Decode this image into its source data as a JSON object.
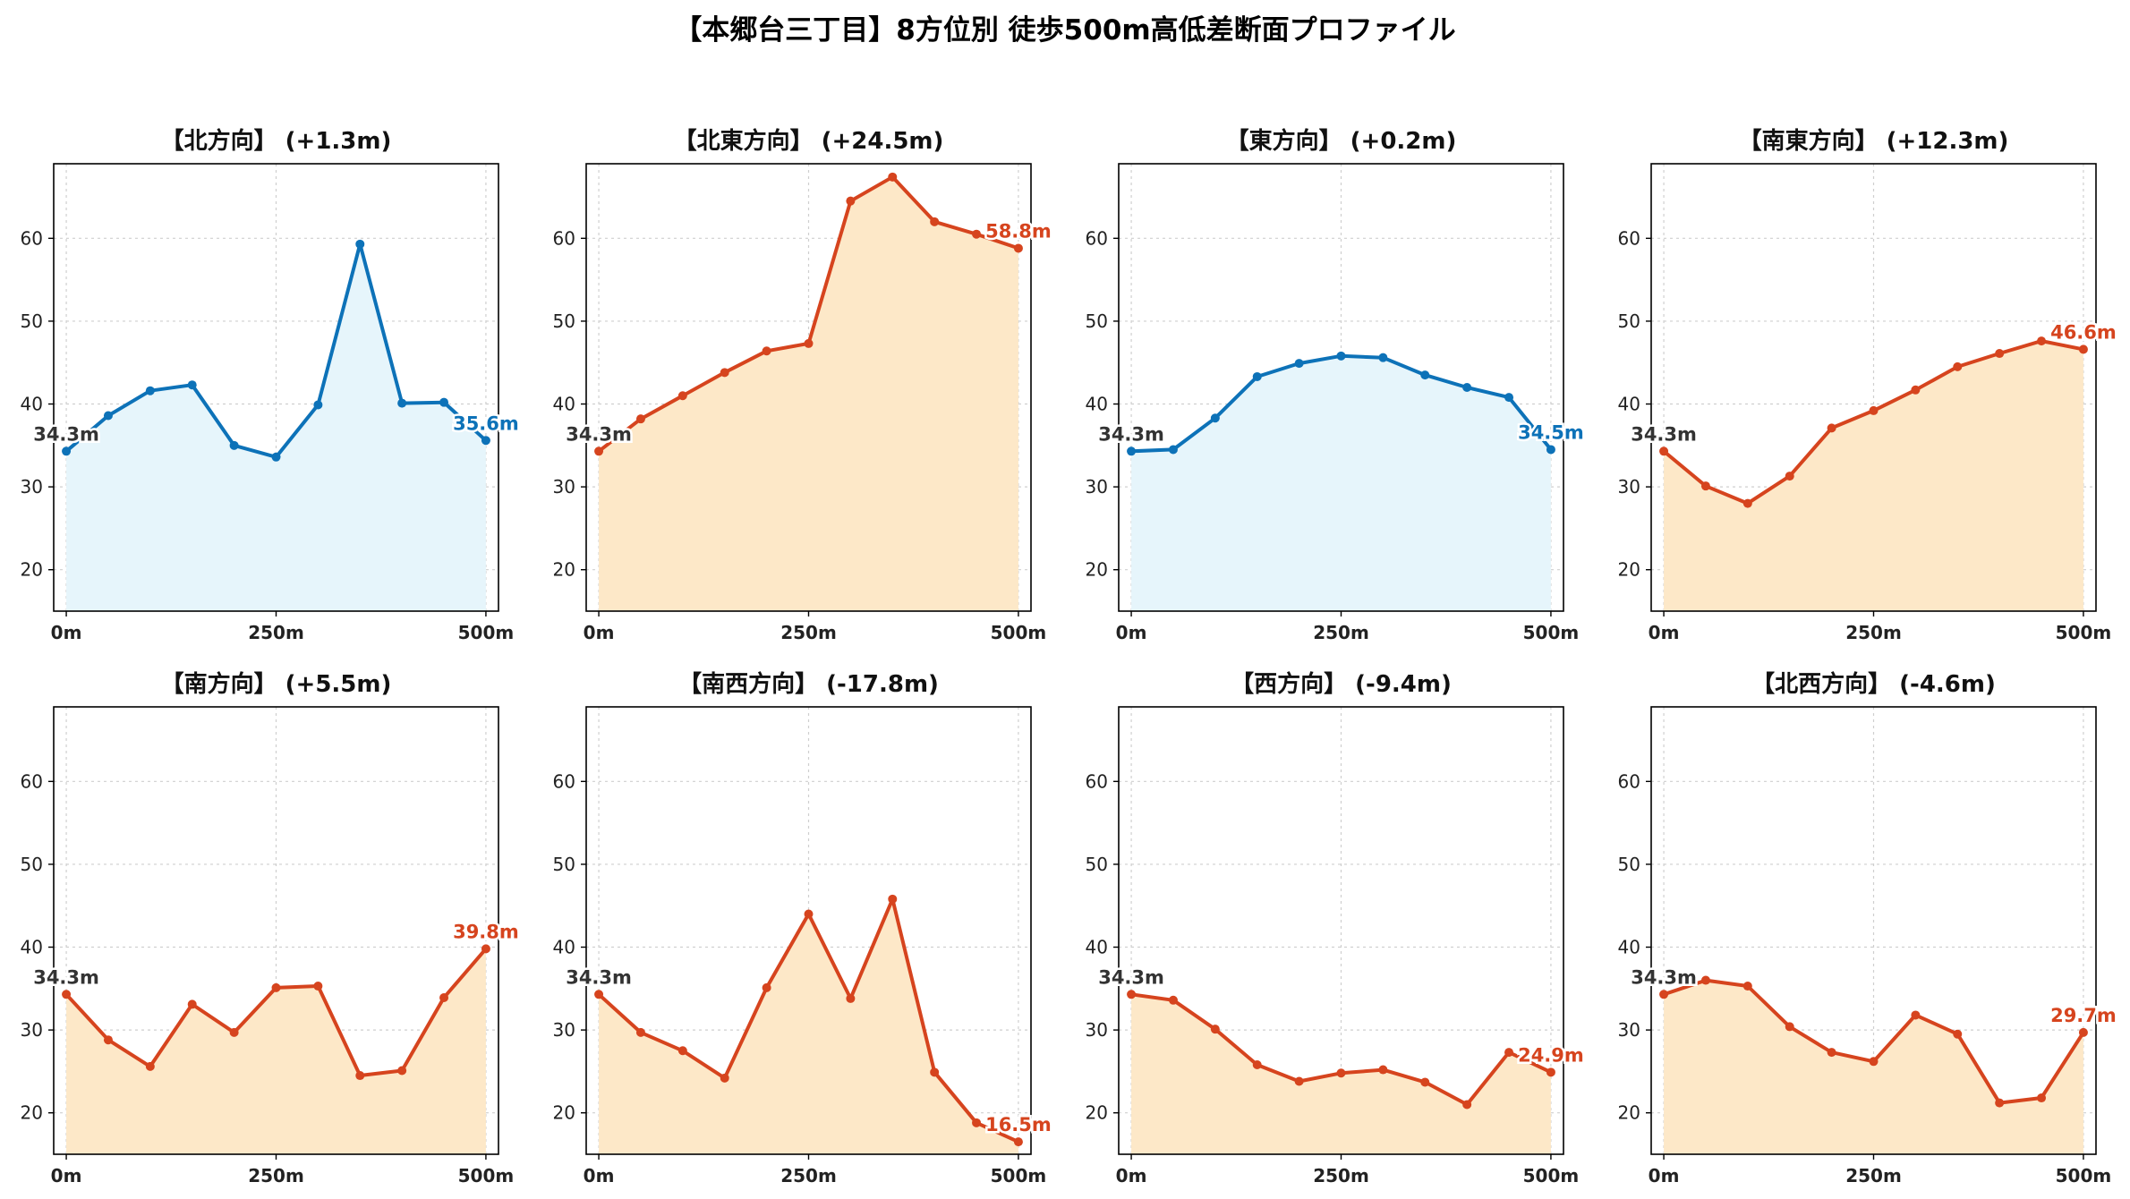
{
  "title": "【本郷台三丁目】8方位別 徒歩500m高低差断面プロファイル",
  "colors": {
    "uphill": "#d6441e",
    "uphill_fill": "#fde8c8",
    "flat": "#0d72b8",
    "flat_fill": "#e6f5fb",
    "start_label": "#333333"
  },
  "chart_data": [
    {
      "type": "area",
      "title": "【北方向】 (+1.3m)",
      "x": [
        0,
        50,
        100,
        150,
        200,
        250,
        300,
        350,
        400,
        450,
        500
      ],
      "values": [
        34.3,
        38.6,
        41.6,
        42.3,
        35.0,
        33.6,
        39.9,
        59.3,
        40.1,
        40.2,
        35.6
      ],
      "xticks": [
        "0m",
        "250m",
        "500m"
      ],
      "yticks": [
        20,
        30,
        40,
        50,
        60
      ],
      "ylim": [
        15,
        69
      ],
      "xlim": [
        -15,
        515
      ],
      "start_label": "34.3m",
      "end_label": "35.6m",
      "color_key": "flat",
      "grid": true
    },
    {
      "type": "area",
      "title": "【北東方向】 (+24.5m)",
      "x": [
        0,
        50,
        100,
        150,
        200,
        250,
        300,
        350,
        400,
        450,
        500
      ],
      "values": [
        34.3,
        38.2,
        41.0,
        43.8,
        46.4,
        47.3,
        64.5,
        67.4,
        62.0,
        60.5,
        58.8
      ],
      "xticks": [
        "0m",
        "250m",
        "500m"
      ],
      "yticks": [
        20,
        30,
        40,
        50,
        60
      ],
      "ylim": [
        15,
        69
      ],
      "xlim": [
        -15,
        515
      ],
      "start_label": "34.3m",
      "end_label": "58.8m",
      "color_key": "uphill",
      "grid": true
    },
    {
      "type": "area",
      "title": "【東方向】 (+0.2m)",
      "x": [
        0,
        50,
        100,
        150,
        200,
        250,
        300,
        350,
        400,
        450,
        500
      ],
      "values": [
        34.3,
        34.5,
        38.3,
        43.3,
        44.9,
        45.8,
        45.6,
        43.5,
        42.0,
        40.8,
        34.5
      ],
      "xticks": [
        "0m",
        "250m",
        "500m"
      ],
      "yticks": [
        20,
        30,
        40,
        50,
        60
      ],
      "ylim": [
        15,
        69
      ],
      "xlim": [
        -15,
        515
      ],
      "start_label": "34.3m",
      "end_label": "34.5m",
      "color_key": "flat",
      "grid": true
    },
    {
      "type": "area",
      "title": "【南東方向】 (+12.3m)",
      "x": [
        0,
        50,
        100,
        150,
        200,
        250,
        300,
        350,
        400,
        450,
        500
      ],
      "values": [
        34.3,
        30.1,
        28.0,
        31.3,
        37.1,
        39.2,
        41.7,
        44.5,
        46.1,
        47.6,
        46.6
      ],
      "xticks": [
        "0m",
        "250m",
        "500m"
      ],
      "yticks": [
        20,
        30,
        40,
        50,
        60
      ],
      "ylim": [
        15,
        69
      ],
      "xlim": [
        -15,
        515
      ],
      "start_label": "34.3m",
      "end_label": "46.6m",
      "color_key": "uphill",
      "grid": true
    },
    {
      "type": "area",
      "title": "【南方向】 (+5.5m)",
      "x": [
        0,
        50,
        100,
        150,
        200,
        250,
        300,
        350,
        400,
        450,
        500
      ],
      "values": [
        34.3,
        28.8,
        25.6,
        33.1,
        29.7,
        35.1,
        35.3,
        24.5,
        25.1,
        33.9,
        39.8
      ],
      "xticks": [
        "0m",
        "250m",
        "500m"
      ],
      "yticks": [
        20,
        30,
        40,
        50,
        60
      ],
      "ylim": [
        15,
        69
      ],
      "xlim": [
        -15,
        515
      ],
      "start_label": "34.3m",
      "end_label": "39.8m",
      "color_key": "uphill",
      "grid": true
    },
    {
      "type": "area",
      "title": "【南西方向】 (-17.8m)",
      "x": [
        0,
        50,
        100,
        150,
        200,
        250,
        300,
        350,
        400,
        450,
        500
      ],
      "values": [
        34.3,
        29.7,
        27.5,
        24.2,
        35.1,
        44.0,
        33.8,
        45.8,
        24.9,
        18.8,
        16.5
      ],
      "xticks": [
        "0m",
        "250m",
        "500m"
      ],
      "yticks": [
        20,
        30,
        40,
        50,
        60
      ],
      "ylim": [
        15,
        69
      ],
      "xlim": [
        -15,
        515
      ],
      "start_label": "34.3m",
      "end_label": "16.5m",
      "color_key": "uphill",
      "grid": true
    },
    {
      "type": "area",
      "title": "【西方向】 (-9.4m)",
      "x": [
        0,
        50,
        100,
        150,
        200,
        250,
        300,
        350,
        400,
        450,
        500
      ],
      "values": [
        34.3,
        33.6,
        30.1,
        25.8,
        23.8,
        24.8,
        25.2,
        23.7,
        21.0,
        27.3,
        24.9
      ],
      "xticks": [
        "0m",
        "250m",
        "500m"
      ],
      "yticks": [
        20,
        30,
        40,
        50,
        60
      ],
      "ylim": [
        15,
        69
      ],
      "xlim": [
        -15,
        515
      ],
      "start_label": "34.3m",
      "end_label": "24.9m",
      "color_key": "uphill",
      "grid": true
    },
    {
      "type": "area",
      "title": "【北西方向】 (-4.6m)",
      "x": [
        0,
        50,
        100,
        150,
        200,
        250,
        300,
        350,
        400,
        450,
        500
      ],
      "values": [
        34.3,
        36.0,
        35.3,
        30.4,
        27.3,
        26.2,
        31.8,
        29.5,
        21.2,
        21.8,
        29.7
      ],
      "xticks": [
        "0m",
        "250m",
        "500m"
      ],
      "yticks": [
        20,
        30,
        40,
        50,
        60
      ],
      "ylim": [
        15,
        69
      ],
      "xlim": [
        -15,
        515
      ],
      "start_label": "34.3m",
      "end_label": "29.7m",
      "color_key": "uphill",
      "grid": true
    }
  ]
}
